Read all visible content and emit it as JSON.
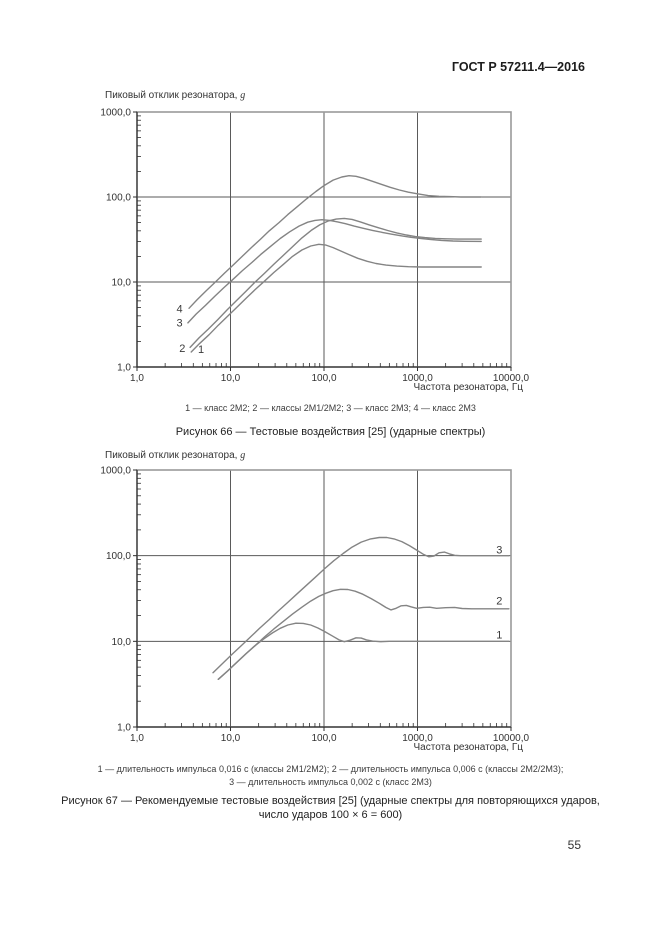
{
  "page": {
    "header": "ГОСТ Р 57211.4—2016",
    "number": "55"
  },
  "colors": {
    "curve": "#848484",
    "grid": "#5a5a5a",
    "border": "#9a9a9a",
    "axis": "#2f2f2f",
    "tick_text": "#333333"
  },
  "figures": [
    {
      "id": "66",
      "legend_lines": [
        "1 — класс 2М2; 2 — классы 2М1/2М2; 3 — класс 2М3; 4 — класс 2М3"
      ],
      "caption_lines": [
        "Рисунок 66 — Тестовые воздействия [25] (ударные спектры)"
      ]
    },
    {
      "id": "67",
      "legend_lines": [
        "1 — длительность импульса 0,016 с (классы 2М1/2М2); 2 — длительность импульса 0,006 с (классы 2М2/2М3);",
        "3 — длительность импульса 0,002 с (класс 2М3)"
      ],
      "caption_lines": [
        "Рисунок 67 — Рекомендуемые тестовые воздействия [25] (ударные спектры для повторяющихся ударов,",
        "число ударов 100 × 6 = 600)"
      ]
    }
  ],
  "chart_data": [
    {
      "type": "line",
      "figure": "Рисунок 66",
      "xscale": "log",
      "yscale": "log",
      "xlim": [
        1,
        10000
      ],
      "ylim": [
        1,
        1000
      ],
      "xlabel": "Частота резонатора, Гц",
      "ylabel": "Пиковый отклик резонатора, g",
      "ylabel_main": "Пиковый отклик резонатора, ",
      "ylabel_unit": "g",
      "x_ticks": [
        {
          "label": "1,0",
          "v": 1
        },
        {
          "label": "10,0",
          "v": 10
        },
        {
          "label": "100,0",
          "v": 100
        },
        {
          "label": "1000,0",
          "v": 1000
        },
        {
          "label": "10000,0",
          "v": 10000
        }
      ],
      "y_ticks": [
        {
          "label": "1000,0",
          "v": 1000
        },
        {
          "label": "100,0",
          "v": 100
        },
        {
          "label": "10,0",
          "v": 10
        },
        {
          "label": "1,0",
          "v": 1
        }
      ],
      "grid_x": [
        10,
        100,
        1000
      ],
      "grid_y": [
        10,
        100
      ],
      "series": [
        {
          "name": "4",
          "label_at": [
            2.85,
            4.8
          ],
          "points": [
            [
              3.6,
              4.9
            ],
            [
              4.4,
              6.2
            ],
            [
              5.5,
              7.9
            ],
            [
              6.9,
              10
            ],
            [
              8.6,
              12.7
            ],
            [
              10.8,
              16
            ],
            [
              13.5,
              20.3
            ],
            [
              17,
              25.8
            ],
            [
              21,
              32
            ],
            [
              26,
              40
            ],
            [
              33,
              50
            ],
            [
              41,
              62
            ],
            [
              52,
              77
            ],
            [
              65,
              95
            ],
            [
              82,
              116
            ],
            [
              100,
              136
            ],
            [
              125,
              158
            ],
            [
              155,
              172
            ],
            [
              185,
              178
            ],
            [
              220,
              175
            ],
            [
              265,
              166
            ],
            [
              330,
              153
            ],
            [
              410,
              141
            ],
            [
              510,
              130
            ],
            [
              640,
              121
            ],
            [
              800,
              114
            ],
            [
              1000,
              109
            ],
            [
              1300,
              104
            ],
            [
              1700,
              102
            ],
            [
              2200,
              101
            ],
            [
              2900,
              100
            ],
            [
              4000,
              100
            ],
            [
              4800,
              100
            ]
          ]
        },
        {
          "name": "3",
          "label_at": [
            2.85,
            3.3
          ],
          "points": [
            [
              3.5,
              3.3
            ],
            [
              4.3,
              4.2
            ],
            [
              5.4,
              5.3
            ],
            [
              6.8,
              6.8
            ],
            [
              8.5,
              8.6
            ],
            [
              10.7,
              10.8
            ],
            [
              13.4,
              13.6
            ],
            [
              17,
              17
            ],
            [
              21,
              21
            ],
            [
              27,
              26.4
            ],
            [
              34,
              32.5
            ],
            [
              43,
              39
            ],
            [
              54,
              45.5
            ],
            [
              67,
              50.5
            ],
            [
              80,
              53
            ],
            [
              95,
              54
            ],
            [
              115,
              53
            ],
            [
              140,
              51
            ],
            [
              170,
              48.5
            ],
            [
              210,
              45.5
            ],
            [
              260,
              43
            ],
            [
              330,
              40.5
            ],
            [
              420,
              38.3
            ],
            [
              530,
              36.5
            ],
            [
              670,
              35
            ],
            [
              850,
              33.6
            ],
            [
              1100,
              32.5
            ],
            [
              1400,
              31.6
            ],
            [
              1800,
              30.9
            ],
            [
              2400,
              30.4
            ],
            [
              3200,
              30.1
            ],
            [
              4800,
              30
            ]
          ]
        },
        {
          "name": "2",
          "label_at": [
            3.05,
            1.65
          ],
          "points": [
            [
              3.7,
              1.7
            ],
            [
              4.6,
              2.2
            ],
            [
              5.8,
              2.8
            ],
            [
              7.3,
              3.6
            ],
            [
              9.2,
              4.7
            ],
            [
              11.5,
              6
            ],
            [
              14.5,
              7.7
            ],
            [
              18,
              9.8
            ],
            [
              23,
              12.6
            ],
            [
              29,
              16.1
            ],
            [
              37,
              20.7
            ],
            [
              46,
              26
            ],
            [
              58,
              33
            ],
            [
              73,
              40.5
            ],
            [
              90,
              47
            ],
            [
              110,
              52
            ],
            [
              135,
              55
            ],
            [
              165,
              56
            ],
            [
              200,
              54.5
            ],
            [
              245,
              51
            ],
            [
              305,
              47
            ],
            [
              380,
              43.5
            ],
            [
              480,
              40.3
            ],
            [
              600,
              37.8
            ],
            [
              760,
              35.7
            ],
            [
              950,
              34.2
            ],
            [
              1200,
              33.3
            ],
            [
              1550,
              32.6
            ],
            [
              2000,
              32.2
            ],
            [
              2700,
              32
            ],
            [
              3700,
              32
            ],
            [
              4800,
              32
            ]
          ]
        },
        {
          "name": "1",
          "label_at": [
            4.85,
            1.6
          ],
          "points": [
            [
              3.8,
              1.5
            ],
            [
              4.7,
              1.9
            ],
            [
              5.9,
              2.4
            ],
            [
              7.4,
              3.1
            ],
            [
              9.3,
              3.95
            ],
            [
              11.7,
              5.05
            ],
            [
              14.7,
              6.45
            ],
            [
              18.5,
              8.2
            ],
            [
              23,
              10.2
            ],
            [
              29,
              12.9
            ],
            [
              37,
              16.2
            ],
            [
              46,
              20
            ],
            [
              58,
              23.8
            ],
            [
              72,
              26.5
            ],
            [
              88,
              27.8
            ],
            [
              105,
              27.2
            ],
            [
              125,
              25.4
            ],
            [
              150,
              23.2
            ],
            [
              185,
              21
            ],
            [
              230,
              19
            ],
            [
              290,
              17.5
            ],
            [
              360,
              16.5
            ],
            [
              460,
              15.8
            ],
            [
              600,
              15.4
            ],
            [
              800,
              15.15
            ],
            [
              1100,
              15
            ],
            [
              1600,
              15
            ],
            [
              2300,
              15
            ],
            [
              3300,
              15
            ],
            [
              4800,
              15
            ]
          ]
        }
      ]
    },
    {
      "type": "line",
      "figure": "Рисунок 67",
      "xscale": "log",
      "yscale": "log",
      "xlim": [
        1,
        10000
      ],
      "ylim": [
        1,
        1000
      ],
      "xlabel": "Частота резонатора, Гц",
      "ylabel": "Пиковый отклик резонатора, g",
      "ylabel_main": "Пиковый отклик резонатора, ",
      "ylabel_unit": "g",
      "x_ticks": [
        {
          "label": "1,0",
          "v": 1
        },
        {
          "label": "10,0",
          "v": 10
        },
        {
          "label": "100,0",
          "v": 100
        },
        {
          "label": "1000,0",
          "v": 1000
        },
        {
          "label": "10000,0",
          "v": 10000
        }
      ],
      "y_ticks": [
        {
          "label": "1000,0",
          "v": 1000
        },
        {
          "label": "100,0",
          "v": 100
        },
        {
          "label": "10,0",
          "v": 10
        },
        {
          "label": "1,0",
          "v": 1
        }
      ],
      "grid_x": [
        10,
        100,
        1000
      ],
      "grid_y": [
        10,
        100
      ],
      "series": [
        {
          "name": "3",
          "label_at": [
            7500,
            116
          ],
          "points": [
            [
              6.5,
              4.3
            ],
            [
              8.2,
              5.5
            ],
            [
              10.3,
              7
            ],
            [
              13,
              8.9
            ],
            [
              16.3,
              11.2
            ],
            [
              20.5,
              14.2
            ],
            [
              26,
              18
            ],
            [
              32,
              22.3
            ],
            [
              41,
              28.5
            ],
            [
              51,
              35.5
            ],
            [
              64,
              44.5
            ],
            [
              81,
              56
            ],
            [
              101,
              70
            ],
            [
              127,
              87
            ],
            [
              160,
              106
            ],
            [
              200,
              126
            ],
            [
              250,
              144
            ],
            [
              310,
              156
            ],
            [
              390,
              163
            ],
            [
              470,
              163
            ],
            [
              560,
              157
            ],
            [
              680,
              146
            ],
            [
              820,
              131
            ],
            [
              980,
              116
            ],
            [
              1150,
              104
            ],
            [
              1320,
              97
            ],
            [
              1500,
              99
            ],
            [
              1700,
              108
            ],
            [
              1950,
              110
            ],
            [
              2200,
              105
            ],
            [
              2500,
              101
            ],
            [
              2900,
              100
            ],
            [
              3600,
              100
            ],
            [
              5000,
              100
            ],
            [
              7000,
              100
            ],
            [
              9500,
              100
            ]
          ]
        },
        {
          "name": "2",
          "label_at": [
            7500,
            29.5
          ],
          "points": [
            [
              7.4,
              3.6
            ],
            [
              9.3,
              4.5
            ],
            [
              11.7,
              5.7
            ],
            [
              14.7,
              7.2
            ],
            [
              18.5,
              9
            ],
            [
              23,
              11.2
            ],
            [
              29,
              13.9
            ],
            [
              37,
              17.2
            ],
            [
              46,
              20.8
            ],
            [
              58,
              25
            ],
            [
              72,
              29.5
            ],
            [
              88,
              33.5
            ],
            [
              105,
              36.5
            ],
            [
              125,
              39
            ],
            [
              150,
              40.5
            ],
            [
              180,
              40.3
            ],
            [
              215,
              38.5
            ],
            [
              260,
              35.5
            ],
            [
              320,
              31.5
            ],
            [
              390,
              27.8
            ],
            [
              460,
              24.8
            ],
            [
              520,
              23.3
            ],
            [
              590,
              24.3
            ],
            [
              670,
              26
            ],
            [
              760,
              26.3
            ],
            [
              860,
              25.2
            ],
            [
              980,
              24.3
            ],
            [
              1150,
              24.9
            ],
            [
              1350,
              25
            ],
            [
              1600,
              24.3
            ],
            [
              2000,
              24.7
            ],
            [
              2500,
              24.9
            ],
            [
              3000,
              24.2
            ],
            [
              3800,
              24
            ],
            [
              5000,
              24
            ],
            [
              7000,
              24
            ],
            [
              9500,
              24
            ]
          ]
        },
        {
          "name": "1",
          "label_at": [
            7500,
            11.8
          ],
          "points": [
            [
              7.4,
              3.6
            ],
            [
              9.3,
              4.5
            ],
            [
              11.7,
              5.7
            ],
            [
              14.7,
              7.2
            ],
            [
              18.5,
              9
            ],
            [
              22.5,
              10.6
            ],
            [
              28,
              12.5
            ],
            [
              34,
              14.2
            ],
            [
              41,
              15.5
            ],
            [
              50,
              16.3
            ],
            [
              60,
              16.2
            ],
            [
              72,
              15.5
            ],
            [
              86,
              14.3
            ],
            [
              102,
              13
            ],
            [
              122,
              11.6
            ],
            [
              145,
              10.4
            ],
            [
              165,
              9.9
            ],
            [
              190,
              10.3
            ],
            [
              220,
              11
            ],
            [
              250,
              10.9
            ],
            [
              285,
              10.4
            ],
            [
              330,
              10.05
            ],
            [
              400,
              9.9
            ],
            [
              500,
              10
            ],
            [
              700,
              10
            ],
            [
              1000,
              10
            ],
            [
              1600,
              10
            ],
            [
              2800,
              10
            ],
            [
              5500,
              10
            ],
            [
              9500,
              10
            ]
          ]
        }
      ]
    }
  ]
}
